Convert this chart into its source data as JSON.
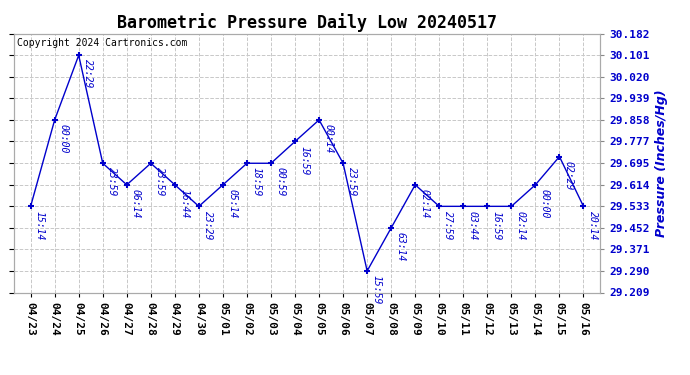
{
  "title": "Barometric Pressure Daily Low 20240517",
  "ylabel": "Pressure (Inches/Hg)",
  "copyright": "Copyright 2024 Cartronics.com",
  "line_color": "#0000cc",
  "background_color": "#ffffff",
  "grid_color": "#c8c8c8",
  "ylim": [
    29.209,
    30.182
  ],
  "yticks": [
    29.209,
    29.29,
    29.371,
    29.452,
    29.533,
    29.614,
    29.695,
    29.777,
    29.858,
    29.939,
    30.02,
    30.101,
    30.182
  ],
  "dates": [
    "04/23",
    "04/24",
    "04/25",
    "04/26",
    "04/27",
    "04/28",
    "04/29",
    "04/30",
    "05/01",
    "05/02",
    "05/03",
    "05/04",
    "05/05",
    "05/06",
    "05/07",
    "05/08",
    "05/09",
    "05/10",
    "05/11",
    "05/12",
    "05/13",
    "05/14",
    "05/15",
    "05/16"
  ],
  "values": [
    29.533,
    29.858,
    30.101,
    29.695,
    29.614,
    29.695,
    29.614,
    29.533,
    29.614,
    29.695,
    29.695,
    29.777,
    29.858,
    29.695,
    29.29,
    29.452,
    29.614,
    29.533,
    29.533,
    29.533,
    29.533,
    29.614,
    29.72,
    29.533
  ],
  "annotations": [
    "15:14",
    "00:00",
    "22:29",
    "23:59",
    "06:14",
    "23:59",
    "16:44",
    "23:29",
    "05:14",
    "18:59",
    "00:59",
    "16:59",
    "00:14",
    "23:59",
    "15:59",
    "63:14",
    "02:14",
    "27:59",
    "03:44",
    "16:59",
    "02:14",
    "00:00",
    "02:29",
    "20:14"
  ],
  "title_fontsize": 12,
  "ylabel_fontsize": 9,
  "tick_fontsize": 8,
  "annot_fontsize": 7,
  "copyright_fontsize": 7
}
